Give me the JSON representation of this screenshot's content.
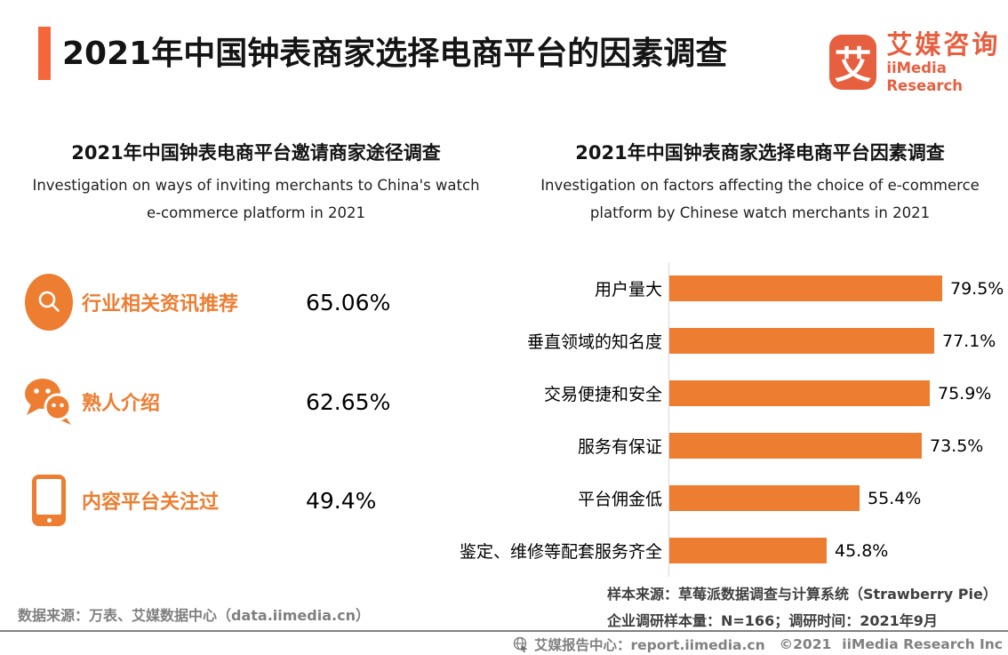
{
  "colors": {
    "accent_orange": "#ED7D31",
    "header_bar_orange": "#F5673A",
    "logo_orange": "#E65F3F",
    "axis_gray": "#D9D9D9",
    "footer_gray": "#808080",
    "note_gray": "#404040"
  },
  "header": {
    "title": "2021年中国钟表商家选择电商平台的因素调查",
    "logo": {
      "glyph": "艾",
      "name_cn": "艾媒咨询",
      "name_en": "iiMedia Research"
    }
  },
  "left_section": {
    "title": "2021年中国钟表电商平台邀请商家途径调查",
    "subtitle": [
      "Investigation on ways of inviting merchants to China's watch",
      "e-commerce platform in 2021"
    ]
  },
  "right_section": {
    "title": "2021年中国钟表商家选择电商平台因素调查",
    "subtitle": [
      "Investigation on factors affecting the choice of e-commerce",
      "platform by Chinese watch merchants in 2021"
    ],
    "notes": [
      "样本来源：草莓派数据调查与计算系统（Strawberry Pie）",
      "企业调研样本量：N=166；调研时间：2021年9月"
    ]
  },
  "chart_data": [
    {
      "type": "bar",
      "orientation": "horizontal",
      "title": "2021年中国钟表商家选择电商平台因素调查",
      "categories": [
        "用户量大",
        "垂直领域的知名度",
        "交易便捷和安全",
        "服务有保证",
        "平台佣金低",
        "鉴定、维修等配套服务齐全"
      ],
      "values": [
        79.5,
        77.1,
        75.9,
        73.5,
        55.4,
        45.8
      ],
      "labels": [
        "79.5%",
        "77.1%",
        "75.9%",
        "73.5%",
        "55.4%",
        "45.8%"
      ],
      "unit": "%",
      "xlim": [
        0,
        88
      ],
      "bar_color": "#ED7D31",
      "grid": false,
      "legend": "none"
    },
    {
      "type": "bar",
      "subtype": "pictogram-list",
      "title": "2021年中国钟表电商平台邀请商家途径调查",
      "categories": [
        "行业相关资讯推荐",
        "熟人介绍",
        "内容平台关注过"
      ],
      "values": [
        65.06,
        62.65,
        49.4
      ],
      "labels": [
        "65.06%",
        "62.65%",
        "49.4%"
      ],
      "unit": "%",
      "icons": [
        "search-icon",
        "wechat-icon",
        "smartphone-icon"
      ]
    }
  ],
  "footer": {
    "datasource": "数据来源：万表、艾媒数据中心（data.iimedia.cn）",
    "report_center": "艾媒报告中心：report.iimedia.cn",
    "copyright": "©2021",
    "corp": "iiMedia Research  Inc"
  }
}
